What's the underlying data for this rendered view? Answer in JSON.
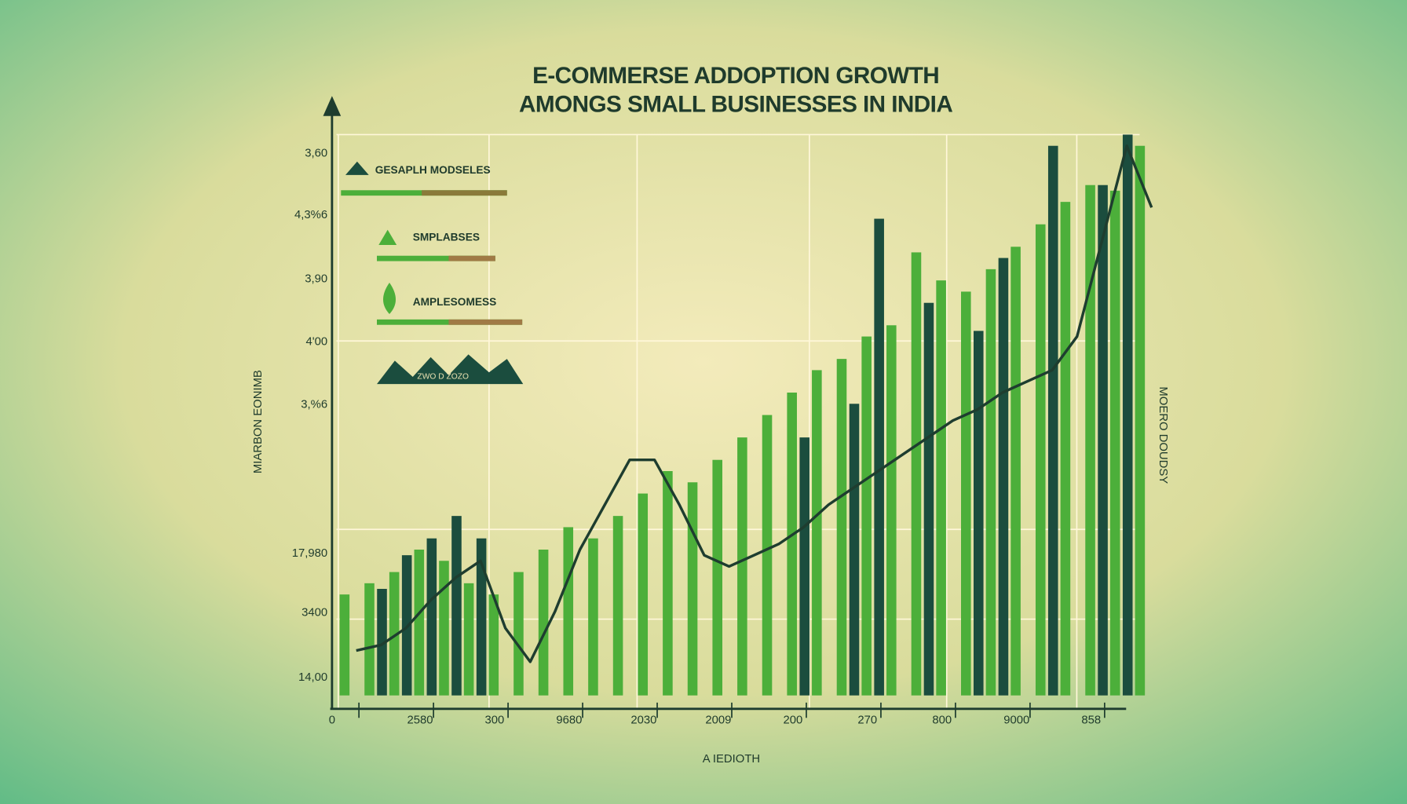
{
  "chart_data": {
    "type": "bar",
    "title": [
      "E-COMMERSE ADDOPTION   GROWTH",
      "AMONGS SMALL BUSINESSES IN   INDIA"
    ],
    "y_axis_title": "MIARBON EONIMB",
    "y2_axis_title": "MOERO DOUDSY",
    "x_axis_title": "A  IEDIOTH",
    "y_axis_labels": [
      "3,60",
      "4,3%6",
      "3,90",
      "4'00",
      "3,%6",
      "17,980",
      "3400",
      "14,00"
    ],
    "annotation": "ZWO D ZOZO",
    "categories": [
      "0",
      null,
      null,
      "2580",
      null,
      null,
      "300",
      null,
      null,
      "9680",
      null,
      null,
      "2030",
      null,
      null,
      "2009",
      null,
      null,
      "200",
      null,
      null,
      "270",
      null,
      null,
      "800",
      null,
      null,
      "9000",
      null,
      null,
      "858",
      null,
      null
    ],
    "ylim": [
      0,
      100
    ],
    "grid": true,
    "series": [
      {
        "name": "GESAPLH MODSELES",
        "color": "#1b4d3e",
        "kind": "bar",
        "values": [
          null,
          19,
          25,
          28,
          32,
          28,
          null,
          null,
          null,
          null,
          null,
          null,
          null,
          null,
          null,
          null,
          null,
          null,
          46,
          null,
          52,
          85,
          null,
          70,
          null,
          65,
          78,
          null,
          98,
          null,
          91,
          100,
          null
        ]
      },
      {
        "name": "SMPLABSES",
        "color": "#4caf3a",
        "kind": "bar",
        "values": [
          18,
          20,
          22,
          26,
          24,
          20,
          18,
          22,
          26,
          30,
          28,
          32,
          36,
          40,
          38,
          42,
          46,
          50,
          54,
          58,
          60,
          64,
          66,
          79,
          74,
          72,
          76,
          80,
          84,
          88,
          91,
          90,
          98
        ]
      },
      {
        "name": "AMPLESOMESS",
        "color": "#1e3d2f",
        "kind": "line",
        "values": [
          8,
          9,
          12,
          17,
          21,
          24,
          12,
          6,
          15,
          26,
          34,
          42,
          42,
          34,
          25,
          23,
          25,
          27,
          30,
          34,
          37,
          40,
          43,
          46,
          49,
          51,
          54,
          56,
          58,
          64,
          81,
          98,
          87
        ]
      }
    ]
  }
}
